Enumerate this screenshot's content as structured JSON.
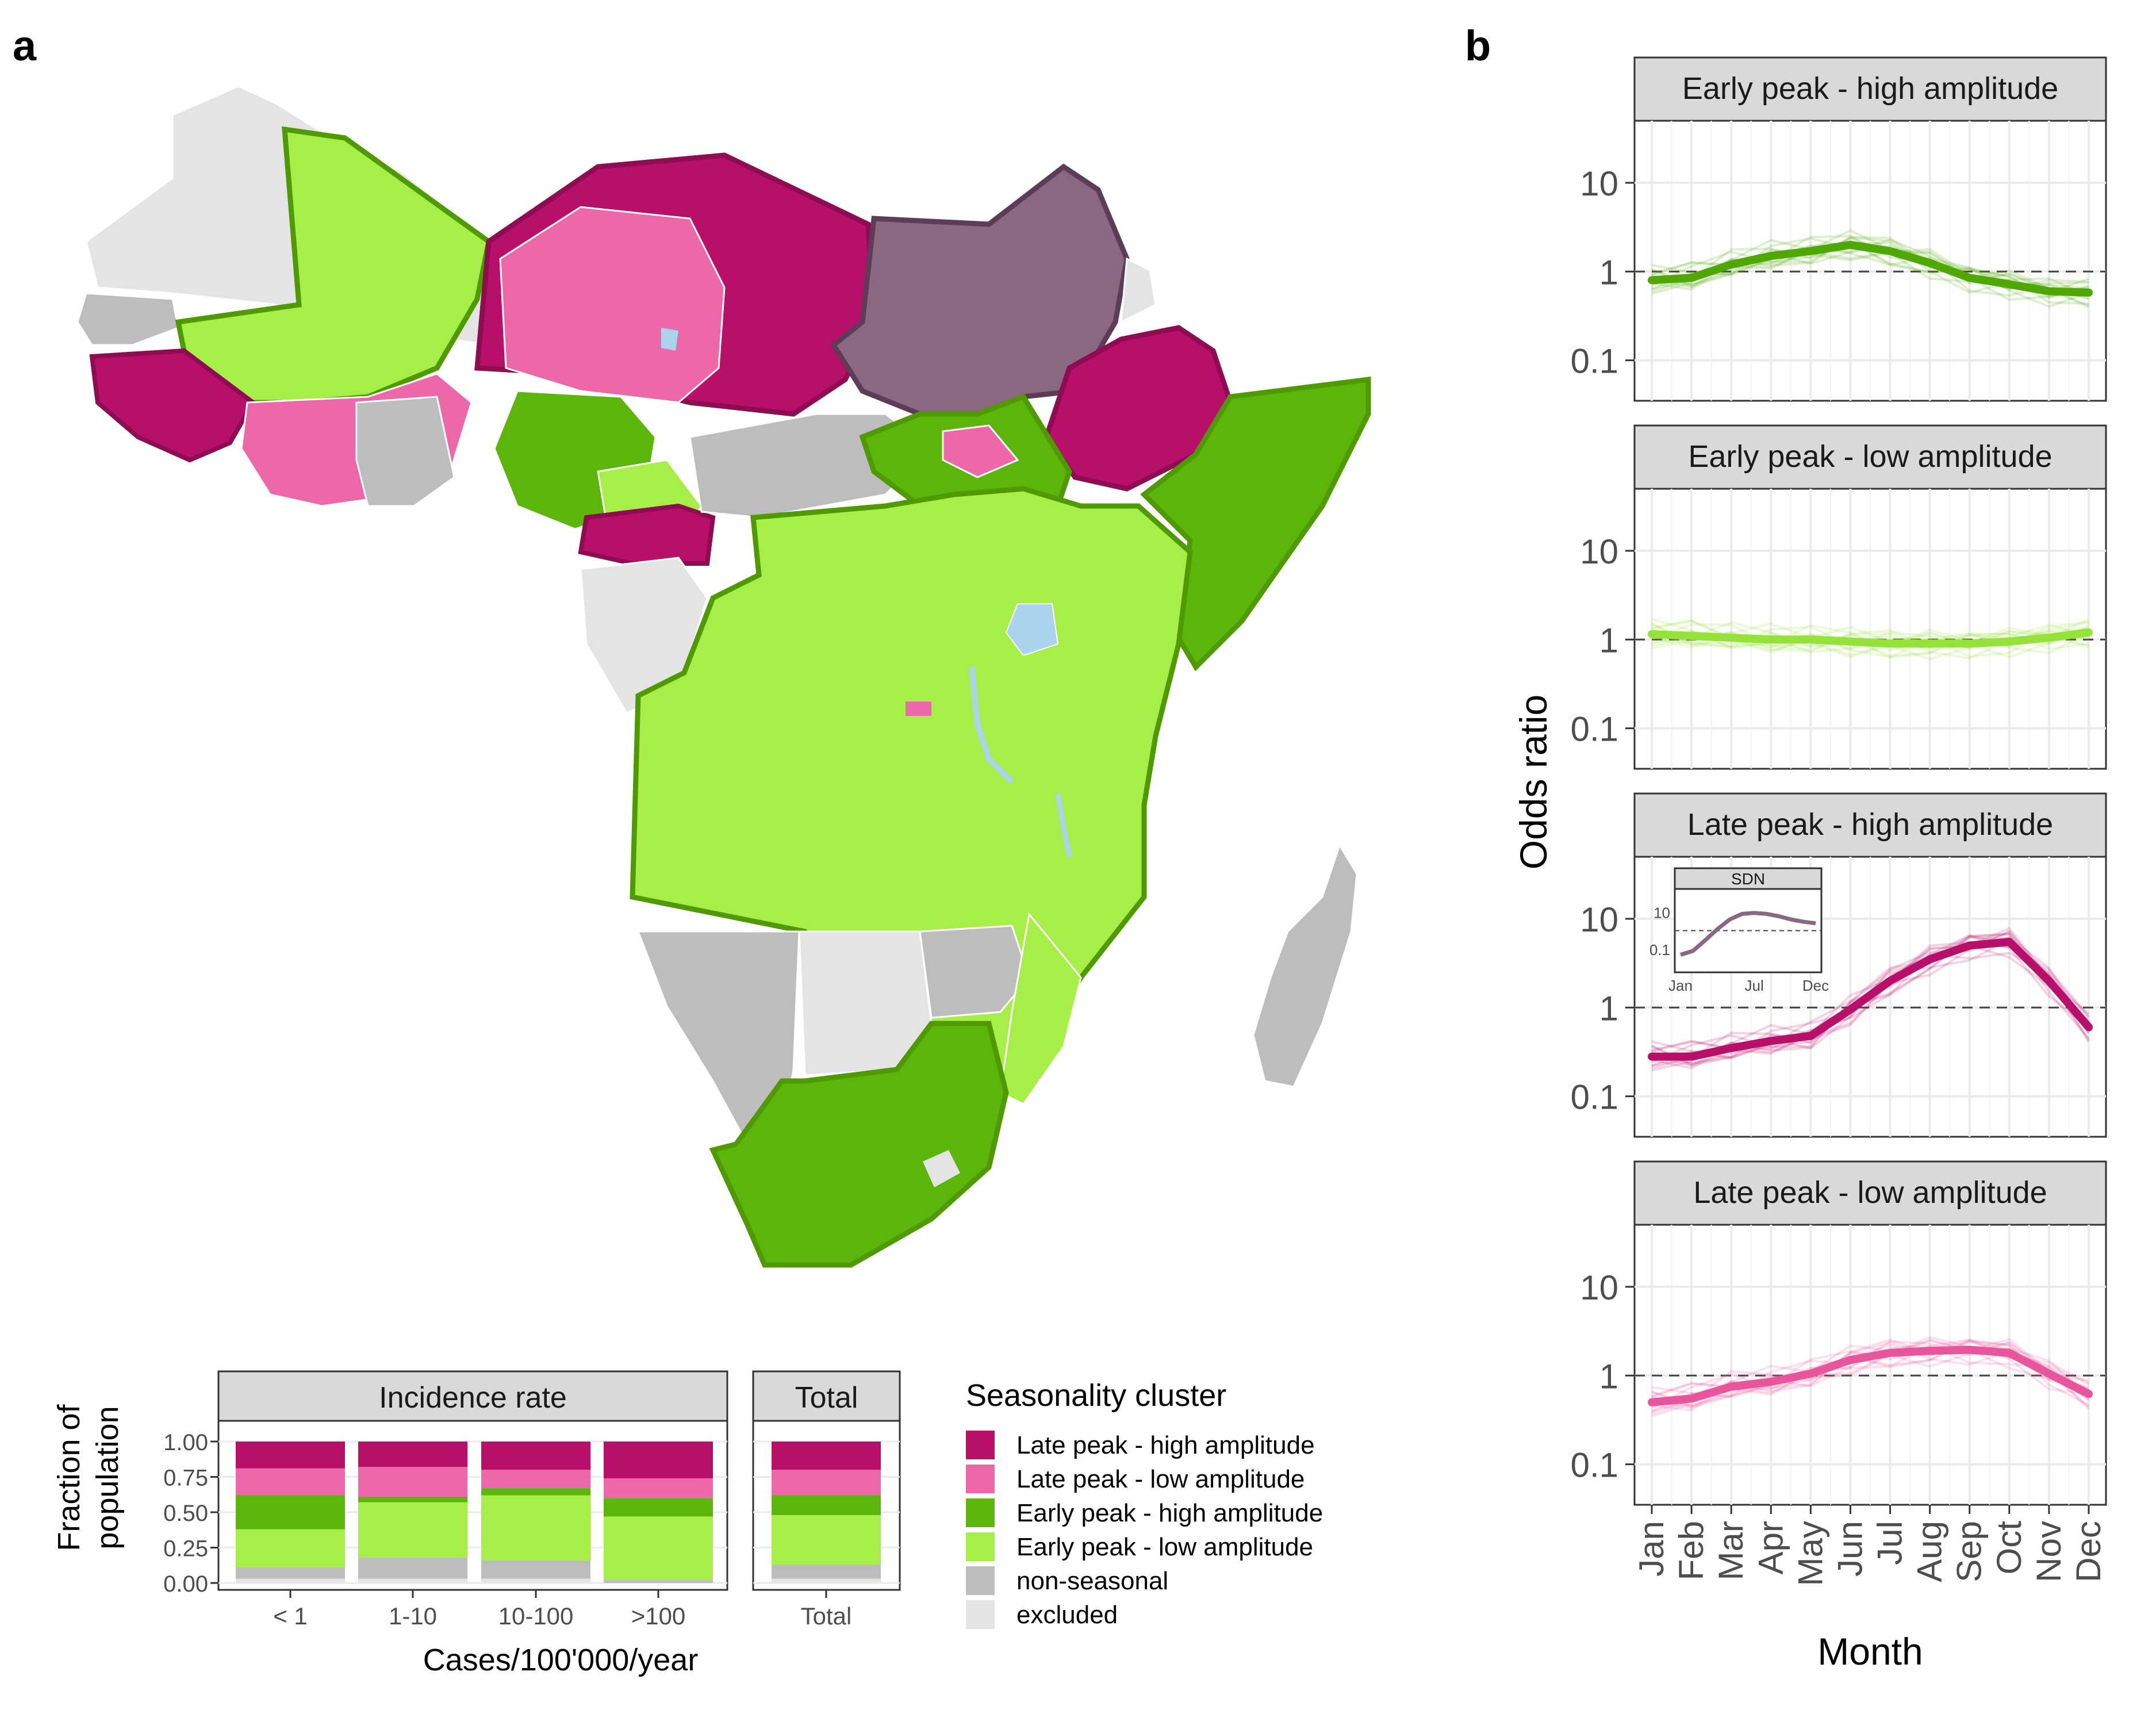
{
  "panel_labels": {
    "a": "a",
    "b": "b"
  },
  "colors": {
    "late_high": "#b8106a",
    "late_low": "#ec68a8",
    "early_high": "#5cb50a",
    "early_low": "#a8ee48",
    "non_seasonal": "#bdbdbd",
    "excluded": "#e4e4e4",
    "sudan": "#8b6882",
    "water": "#a9d4ec",
    "strip": "#d9d9d9"
  },
  "legend": {
    "title": "Seasonality cluster",
    "items": [
      {
        "key": "late_high",
        "label": "Late peak - high amplitude"
      },
      {
        "key": "late_low",
        "label": "Late peak - low amplitude"
      },
      {
        "key": "early_high",
        "label": "Early peak - high amplitude"
      },
      {
        "key": "early_low",
        "label": "Early peak - low amplitude"
      },
      {
        "key": "non_seasonal",
        "label": "non-seasonal"
      },
      {
        "key": "excluded",
        "label": "excluded"
      }
    ]
  },
  "chart_data": [
    {
      "type": "bar",
      "stacked": true,
      "facets": [
        "Incidence rate",
        "Total"
      ],
      "categories": [
        "< 1",
        "1-10",
        "10-100",
        ">100",
        "Total"
      ],
      "category_facet": [
        0,
        0,
        0,
        0,
        1
      ],
      "xlabel": "Cases/100'000/year",
      "ylabel": "Fraction of population",
      "ylim": [
        0,
        1
      ],
      "yticks": [
        "0.00",
        "0.25",
        "0.50",
        "0.75",
        "1.00"
      ],
      "series": [
        {
          "name": "excluded",
          "key": "excluded",
          "values": [
            0.03,
            0.03,
            0.03,
            0.0,
            0.03
          ]
        },
        {
          "name": "non-seasonal",
          "key": "non_seasonal",
          "values": [
            0.08,
            0.15,
            0.13,
            0.02,
            0.1
          ]
        },
        {
          "name": "Early peak - low amplitude",
          "key": "early_low",
          "values": [
            0.27,
            0.39,
            0.46,
            0.45,
            0.35
          ]
        },
        {
          "name": "Early peak - high amplitude",
          "key": "early_high",
          "values": [
            0.24,
            0.04,
            0.05,
            0.13,
            0.14
          ]
        },
        {
          "name": "Late peak - low amplitude",
          "key": "late_low",
          "values": [
            0.19,
            0.21,
            0.13,
            0.14,
            0.18
          ]
        },
        {
          "name": "Late peak - high amplitude",
          "key": "late_high",
          "values": [
            0.19,
            0.18,
            0.2,
            0.26,
            0.2
          ]
        }
      ]
    },
    {
      "type": "line",
      "ylabel": "Odds ratio",
      "xlabel": "Month",
      "yscale": "log",
      "ylim": [
        0.035,
        50
      ],
      "yticks": [
        0.1,
        1,
        10
      ],
      "ytick_labels": [
        "0.1",
        "1",
        "10"
      ],
      "reference_line": 1,
      "x": [
        "Jan",
        "Feb",
        "Mar",
        "Apr",
        "May",
        "Jun",
        "Jul",
        "Aug",
        "Sep",
        "Oct",
        "Nov",
        "Dec"
      ],
      "facets": [
        {
          "title": "Early peak - high amplitude",
          "key": "early_high",
          "values": [
            0.8,
            0.85,
            1.2,
            1.5,
            1.7,
            2.0,
            1.7,
            1.25,
            0.85,
            0.72,
            0.6,
            0.58
          ]
        },
        {
          "title": "Early peak - low amplitude",
          "key": "early_low",
          "values": [
            1.15,
            1.1,
            1.05,
            1.0,
            1.0,
            0.95,
            0.9,
            0.9,
            0.9,
            0.95,
            1.05,
            1.2
          ]
        },
        {
          "title": "Late peak - high amplitude",
          "key": "late_high",
          "values": [
            0.28,
            0.28,
            0.35,
            0.42,
            0.48,
            0.95,
            2.0,
            3.5,
            5.0,
            5.5,
            2.0,
            0.6
          ]
        },
        {
          "title": "Late peak - low amplitude",
          "key": "late_low",
          "values": [
            0.5,
            0.55,
            0.75,
            0.85,
            1.05,
            1.5,
            1.8,
            1.9,
            1.95,
            1.8,
            1.05,
            0.62
          ]
        }
      ],
      "inset": {
        "title": "SDN",
        "yticks": [
          "10",
          "0.1"
        ],
        "xticks": [
          "Jan",
          "Jul",
          "Dec"
        ],
        "values": [
          0.05,
          0.08,
          0.3,
          1.2,
          4,
          8,
          9,
          8,
          6,
          4,
          3,
          2.5
        ]
      }
    }
  ]
}
